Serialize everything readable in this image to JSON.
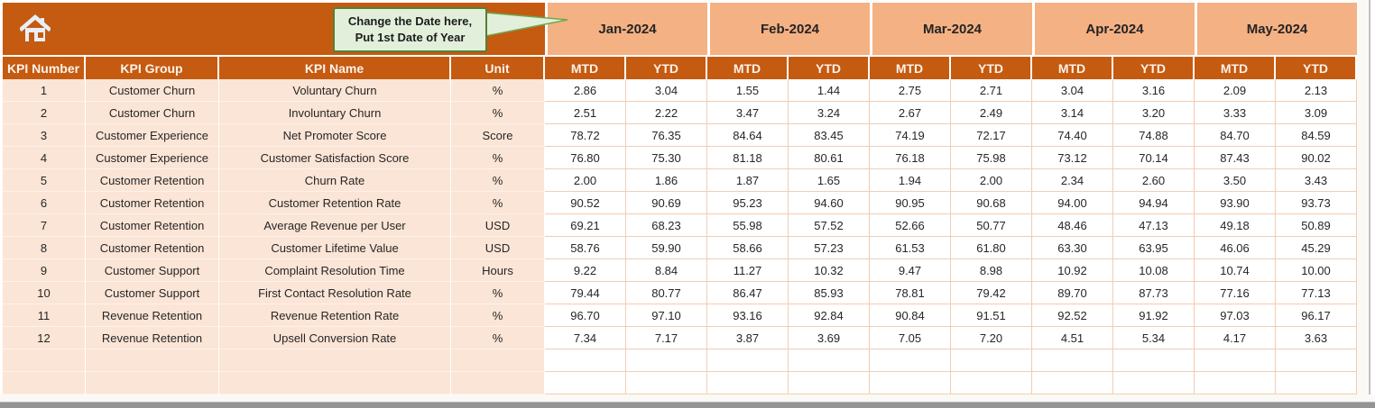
{
  "callout": {
    "line1": "Change the Date here,",
    "line2": "Put 1st Date of Year"
  },
  "icons": {
    "home": "home-icon"
  },
  "colors": {
    "dark": "#C55A11",
    "mid": "#F4B183",
    "peach": "#FBE5D6",
    "line": "#F2CDB2",
    "callout": "#E2EFDA",
    "callout_border": "#538135"
  },
  "table": {
    "left_headers": [
      "KPI Number",
      "KPI Group",
      "KPI Name",
      "Unit"
    ],
    "months": [
      "Jan-2024",
      "Feb-2024",
      "Mar-2024",
      "Apr-2024",
      "May-2024"
    ],
    "sub_headers": [
      "MTD",
      "YTD"
    ],
    "empty_rows": 2,
    "rows": [
      {
        "number": "1",
        "group": "Customer Churn",
        "name": "Voluntary Churn",
        "unit": "%",
        "values": [
          "2.86",
          "3.04",
          "1.55",
          "1.44",
          "2.75",
          "2.71",
          "3.04",
          "3.16",
          "2.09",
          "2.13"
        ]
      },
      {
        "number": "2",
        "group": "Customer Churn",
        "name": "Involuntary Churn",
        "unit": "%",
        "values": [
          "2.51",
          "2.22",
          "3.47",
          "3.24",
          "2.67",
          "2.49",
          "3.14",
          "3.20",
          "3.33",
          "3.09"
        ]
      },
      {
        "number": "3",
        "group": "Customer Experience",
        "name": "Net Promoter Score",
        "unit": "Score",
        "values": [
          "78.72",
          "76.35",
          "84.64",
          "83.45",
          "74.19",
          "72.17",
          "74.40",
          "74.88",
          "84.70",
          "84.59"
        ]
      },
      {
        "number": "4",
        "group": "Customer Experience",
        "name": "Customer Satisfaction Score",
        "unit": "%",
        "values": [
          "76.80",
          "75.30",
          "81.18",
          "80.61",
          "76.18",
          "75.98",
          "73.12",
          "70.14",
          "87.43",
          "90.02"
        ]
      },
      {
        "number": "5",
        "group": "Customer Retention",
        "name": "Churn Rate",
        "unit": "%",
        "values": [
          "2.00",
          "1.86",
          "1.87",
          "1.65",
          "1.94",
          "2.00",
          "2.34",
          "2.60",
          "3.50",
          "3.43"
        ]
      },
      {
        "number": "6",
        "group": "Customer Retention",
        "name": "Customer Retention Rate",
        "unit": "%",
        "values": [
          "90.52",
          "90.69",
          "95.23",
          "94.60",
          "90.95",
          "90.68",
          "94.00",
          "94.94",
          "93.90",
          "93.73"
        ]
      },
      {
        "number": "7",
        "group": "Customer Retention",
        "name": "Average Revenue per User",
        "unit": "USD",
        "values": [
          "69.21",
          "68.23",
          "55.98",
          "57.52",
          "52.66",
          "50.77",
          "48.46",
          "47.13",
          "49.18",
          "50.89"
        ]
      },
      {
        "number": "8",
        "group": "Customer Retention",
        "name": "Customer Lifetime Value",
        "unit": "USD",
        "values": [
          "58.76",
          "59.90",
          "58.66",
          "57.23",
          "61.53",
          "61.80",
          "63.30",
          "63.95",
          "46.06",
          "45.29"
        ]
      },
      {
        "number": "9",
        "group": "Customer Support",
        "name": "Complaint Resolution Time",
        "unit": "Hours",
        "values": [
          "9.22",
          "8.84",
          "11.27",
          "10.32",
          "9.47",
          "8.98",
          "10.92",
          "10.08",
          "10.74",
          "10.00"
        ]
      },
      {
        "number": "10",
        "group": "Customer Support",
        "name": "First Contact Resolution Rate",
        "unit": "%",
        "values": [
          "79.44",
          "80.77",
          "86.47",
          "85.93",
          "78.81",
          "79.42",
          "89.70",
          "87.73",
          "77.16",
          "77.13"
        ]
      },
      {
        "number": "11",
        "group": "Revenue Retention",
        "name": "Revenue Retention Rate",
        "unit": "%",
        "values": [
          "96.70",
          "97.10",
          "93.16",
          "92.84",
          "90.84",
          "91.51",
          "92.52",
          "91.92",
          "97.03",
          "96.17"
        ]
      },
      {
        "number": "12",
        "group": "Revenue Retention",
        "name": "Upsell Conversion Rate",
        "unit": "%",
        "values": [
          "7.34",
          "7.17",
          "3.87",
          "3.69",
          "7.05",
          "7.20",
          "4.51",
          "5.34",
          "4.17",
          "3.63"
        ]
      }
    ]
  }
}
